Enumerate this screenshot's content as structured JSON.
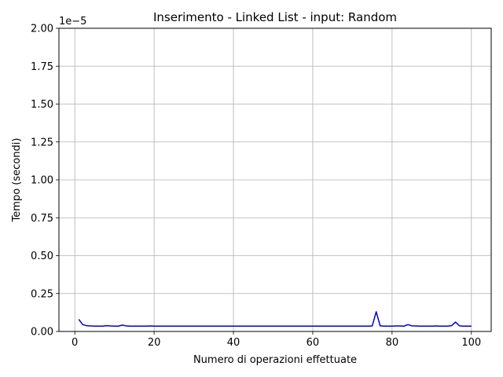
{
  "chart_data": {
    "type": "line",
    "title": "Inserimento - Linked List - input: Random",
    "xlabel": "Numero di operazioni effettuate",
    "ylabel": "Tempo (secondi)",
    "y_offset_label": "1e−5",
    "xlim": [
      -4,
      105
    ],
    "ylim": [
      0,
      2.0
    ],
    "y_scale_factor": 1e-05,
    "x_ticks": [
      0,
      20,
      40,
      60,
      80,
      100
    ],
    "x_tick_labels": [
      "0",
      "20",
      "40",
      "60",
      "80",
      "100"
    ],
    "y_ticks": [
      0,
      0.25,
      0.5,
      0.75,
      1.0,
      1.25,
      1.5,
      1.75,
      2.0
    ],
    "y_tick_labels": [
      "0.00",
      "0.25",
      "0.50",
      "0.75",
      "1.00",
      "1.25",
      "1.50",
      "1.75",
      "2.00"
    ],
    "grid": true,
    "line_color": "#0000cc",
    "series": [
      {
        "x": [
          1,
          2,
          3,
          4,
          5,
          6,
          7,
          8,
          9,
          10,
          11,
          12,
          13,
          14,
          15,
          16,
          17,
          18,
          19,
          20,
          21,
          22,
          23,
          24,
          25,
          26,
          27,
          28,
          29,
          30,
          31,
          32,
          33,
          34,
          35,
          36,
          37,
          38,
          39,
          40,
          41,
          42,
          43,
          44,
          45,
          46,
          47,
          48,
          49,
          50,
          51,
          52,
          53,
          54,
          55,
          56,
          57,
          58,
          59,
          60,
          61,
          62,
          63,
          64,
          65,
          66,
          67,
          68,
          69,
          70,
          71,
          72,
          73,
          74,
          75,
          76,
          77,
          78,
          79,
          80,
          81,
          82,
          83,
          84,
          85,
          86,
          87,
          88,
          89,
          90,
          91,
          92,
          93,
          94,
          95,
          96,
          97,
          98,
          99,
          100
        ],
        "values": [
          0.08,
          0.045,
          0.038,
          0.036,
          0.035,
          0.035,
          0.035,
          0.038,
          0.036,
          0.035,
          0.035,
          0.042,
          0.036,
          0.035,
          0.035,
          0.035,
          0.035,
          0.035,
          0.036,
          0.035,
          0.035,
          0.035,
          0.035,
          0.035,
          0.035,
          0.035,
          0.035,
          0.035,
          0.035,
          0.035,
          0.035,
          0.035,
          0.035,
          0.035,
          0.035,
          0.035,
          0.035,
          0.035,
          0.035,
          0.035,
          0.035,
          0.035,
          0.035,
          0.035,
          0.035,
          0.035,
          0.035,
          0.035,
          0.035,
          0.035,
          0.035,
          0.035,
          0.035,
          0.035,
          0.035,
          0.035,
          0.035,
          0.035,
          0.035,
          0.035,
          0.035,
          0.035,
          0.035,
          0.035,
          0.035,
          0.035,
          0.035,
          0.035,
          0.035,
          0.035,
          0.035,
          0.035,
          0.035,
          0.035,
          0.036,
          0.13,
          0.037,
          0.035,
          0.035,
          0.035,
          0.036,
          0.036,
          0.035,
          0.045,
          0.037,
          0.036,
          0.035,
          0.035,
          0.035,
          0.035,
          0.036,
          0.035,
          0.035,
          0.035,
          0.038,
          0.062,
          0.037,
          0.035,
          0.035,
          0.035
        ]
      }
    ]
  }
}
